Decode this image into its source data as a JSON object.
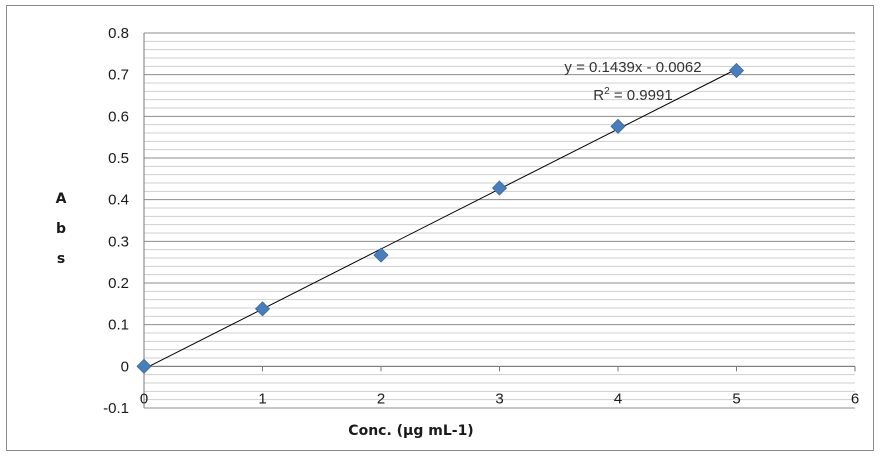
{
  "chart_data": {
    "type": "scatter",
    "title": "",
    "xlabel": "Conc. (µg mL-1)",
    "ylabel_letters": [
      "A",
      "b",
      "s"
    ],
    "xlim": [
      0,
      6
    ],
    "ylim": [
      -0.1,
      0.8
    ],
    "x_ticks": [
      "0",
      "1",
      "2",
      "3",
      "4",
      "5",
      "6"
    ],
    "y_ticks": [
      "-0.1",
      "0",
      "0.1",
      "0.2",
      "0.3",
      "0.4",
      "0.5",
      "0.6",
      "0.7",
      "0.8"
    ],
    "grid": "horizontal",
    "series": [
      {
        "x": [
          0,
          1,
          2,
          3,
          4,
          5
        ],
        "y": [
          0.0,
          0.138,
          0.267,
          0.428,
          0.576,
          0.71
        ],
        "marker": "diamond",
        "color": "#4a7ebb"
      }
    ],
    "trendline": {
      "slope": 0.1439,
      "intercept": -0.0062,
      "x_range": [
        0,
        5
      ],
      "color": "#000000"
    },
    "annotations": {
      "equation": "y = 0.1439x - 0.0062",
      "r2_prefix": "R",
      "r2_sup": "2",
      "r2_value": " = 0.9991"
    }
  }
}
